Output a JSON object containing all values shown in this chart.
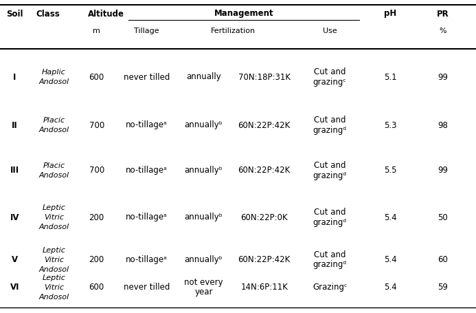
{
  "rows": [
    {
      "soil": "I",
      "class_lines": [
        "Haplic",
        "Andosol"
      ],
      "altitude": "600",
      "tillage": "never tilled",
      "fert_lines": [
        "annually"
      ],
      "fert_amount": "70N:18P:31K",
      "use_lines": [
        "Cut and",
        "grazingᶜ"
      ],
      "ph": "5.1",
      "pr": "99"
    },
    {
      "soil": "II",
      "class_lines": [
        "Placic",
        "Andosol"
      ],
      "altitude": "700",
      "tillage": "no-tillageᵃ",
      "fert_lines": [
        "annuallyᵇ"
      ],
      "fert_amount": "60N:22P:42K",
      "use_lines": [
        "Cut and",
        "grazingᵈ"
      ],
      "ph": "5.3",
      "pr": "98"
    },
    {
      "soil": "III",
      "class_lines": [
        "Placic",
        "Andosol"
      ],
      "altitude": "700",
      "tillage": "no-tillageᵃ",
      "fert_lines": [
        "annuallyᵇ"
      ],
      "fert_amount": "60N:22P:42K",
      "use_lines": [
        "Cut and",
        "grazingᵈ"
      ],
      "ph": "5.5",
      "pr": "99"
    },
    {
      "soil": "IV",
      "class_lines": [
        "Leptic",
        "Vitric",
        "Andosol"
      ],
      "altitude": "200",
      "tillage": "no-tillageᵃ",
      "fert_lines": [
        "annuallyᵇ"
      ],
      "fert_amount": "60N:22P:0K",
      "use_lines": [
        "Cut and",
        "grazingᵈ"
      ],
      "ph": "5.4",
      "pr": "50"
    },
    {
      "soil": "V",
      "class_lines": [
        "Leptic",
        "Vitric",
        "Andosol"
      ],
      "altitude": "200",
      "tillage": "no-tillageᵃ",
      "fert_lines": [
        "annuallyᵇ"
      ],
      "fert_amount": "60N:22P:42K",
      "use_lines": [
        "Cut and",
        "grazingᵈ"
      ],
      "ph": "5.4",
      "pr": "60"
    },
    {
      "soil": "VI",
      "class_lines": [
        "Leptic",
        "Vitric",
        "Andosol"
      ],
      "altitude": "600",
      "tillage": "never tilled",
      "fert_lines": [
        "not every",
        "year"
      ],
      "fert_amount": "14N:6P:11K",
      "use_lines": [
        "Grazingᶜ"
      ],
      "ph": "5.4",
      "pr": "59"
    }
  ],
  "col_x": {
    "soil": 0.013,
    "class": 0.075,
    "altitude": 0.185,
    "tillage": 0.27,
    "fert_timing": 0.4,
    "fert_amount": 0.52,
    "use": 0.66,
    "ph": 0.82,
    "pr": 0.93
  },
  "bg_color": "#ffffff",
  "line_color": "#000000",
  "fs_header": 8.5,
  "fs_data": 8.5,
  "fs_sub": 8.0
}
